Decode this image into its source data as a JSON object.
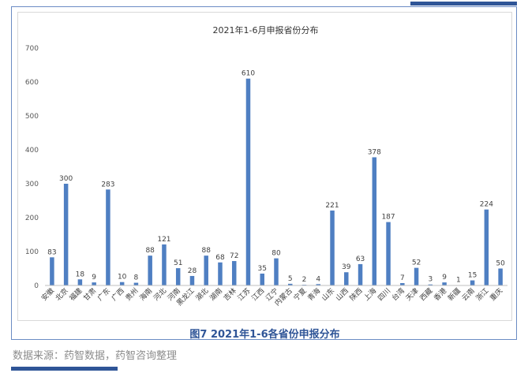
{
  "caption": "图7 2021年1-6各省份申报分布",
  "source": "数据来源：药智数据，药智咨询整理",
  "colors": {
    "bar": "#4f7fc2",
    "accent": "#2f5597"
  },
  "chart_data": {
    "type": "bar",
    "title": "2021年1-6月申报省份分布",
    "xlabel": "",
    "ylabel": "",
    "ylim": [
      0,
      700
    ],
    "yticks": [
      0,
      100,
      200,
      300,
      400,
      500,
      600,
      700
    ],
    "grid": false,
    "legend": "none",
    "categories": [
      "安徽",
      "北京",
      "福建",
      "甘肃",
      "广东",
      "广西",
      "贵州",
      "海南",
      "河北",
      "河南",
      "黑龙江",
      "湖北",
      "湖南",
      "吉林",
      "江苏",
      "江西",
      "辽宁",
      "内蒙古",
      "宁夏",
      "青海",
      "山东",
      "山西",
      "陕西",
      "上海",
      "四川",
      "台湾",
      "天津",
      "西藏",
      "香港",
      "新疆",
      "云南",
      "浙江",
      "重庆"
    ],
    "values": [
      83,
      300,
      18,
      9,
      283,
      10,
      8,
      88,
      121,
      51,
      28,
      88,
      68,
      72,
      610,
      35,
      80,
      5,
      2,
      4,
      221,
      39,
      63,
      378,
      187,
      7,
      52,
      3,
      9,
      1,
      15,
      224,
      50
    ]
  }
}
